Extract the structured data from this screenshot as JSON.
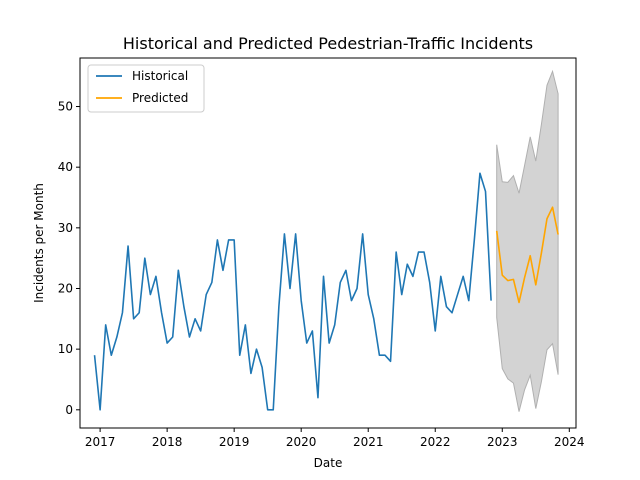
{
  "chart_data": {
    "type": "line",
    "title": "Historical and Predicted Pedestrian-Traffic Incidents",
    "xlabel": "Date",
    "ylabel": "Incidents per Month",
    "xlim": [
      2016.7,
      2024.1
    ],
    "ylim": [
      -3,
      58
    ],
    "xticks": [
      2017,
      2018,
      2019,
      2020,
      2021,
      2022,
      2023,
      2024
    ],
    "yticks": [
      0,
      10,
      20,
      30,
      40,
      50
    ],
    "grid": false,
    "legend_position": "top-left",
    "series": [
      {
        "name": "Historical",
        "color": "#1f77b4",
        "x": [
          2016.917,
          2017.0,
          2017.083,
          2017.167,
          2017.25,
          2017.333,
          2017.417,
          2017.5,
          2017.583,
          2017.667,
          2017.75,
          2017.833,
          2017.917,
          2018.0,
          2018.083,
          2018.167,
          2018.25,
          2018.333,
          2018.417,
          2018.5,
          2018.583,
          2018.667,
          2018.75,
          2018.833,
          2018.917,
          2019.0,
          2019.083,
          2019.167,
          2019.25,
          2019.333,
          2019.417,
          2019.5,
          2019.583,
          2019.667,
          2019.75,
          2019.833,
          2019.917,
          2020.0,
          2020.083,
          2020.167,
          2020.25,
          2020.333,
          2020.417,
          2020.5,
          2020.583,
          2020.667,
          2020.75,
          2020.833,
          2020.917,
          2021.0,
          2021.083,
          2021.167,
          2021.25,
          2021.333,
          2021.417,
          2021.5,
          2021.583,
          2021.667,
          2021.75,
          2021.833,
          2021.917,
          2022.0,
          2022.083,
          2022.167,
          2022.25,
          2022.333,
          2022.417,
          2022.5,
          2022.583,
          2022.667,
          2022.75,
          2022.833
        ],
        "values": [
          9,
          0,
          14,
          9,
          12,
          16,
          27,
          15,
          16,
          25,
          19,
          22,
          16,
          11,
          12,
          23,
          17,
          12,
          15,
          13,
          19,
          21,
          28,
          23,
          28,
          28,
          9,
          14,
          6,
          10,
          7,
          0,
          0,
          17,
          29,
          20,
          29,
          18,
          11,
          13,
          2,
          22,
          11,
          14,
          21,
          23,
          18,
          20,
          29,
          19,
          15,
          9,
          9,
          8,
          26,
          19,
          24,
          22,
          26,
          26,
          21,
          13,
          22,
          17,
          16,
          19,
          22,
          18,
          28,
          39,
          36,
          18
        ]
      },
      {
        "name": "Predicted",
        "color": "#ffa500",
        "x": [
          2022.917,
          2023.0,
          2023.083,
          2023.167,
          2023.25,
          2023.333,
          2023.417,
          2023.5,
          2023.583,
          2023.667,
          2023.75,
          2023.833
        ],
        "values": [
          29.5,
          22.2,
          21.3,
          21.5,
          17.7,
          21.8,
          25.4,
          20.6,
          25.8,
          31.5,
          33.4,
          28.9
        ]
      }
    ],
    "confidence_band": {
      "color": "#d3d3d3",
      "x": [
        2022.917,
        2023.0,
        2023.083,
        2023.167,
        2023.25,
        2023.333,
        2023.417,
        2023.5,
        2023.583,
        2023.667,
        2023.75,
        2023.833
      ],
      "lower": [
        15.2,
        6.8,
        5.1,
        4.4,
        -0.3,
        3.3,
        5.7,
        0.2,
        4.6,
        9.9,
        10.9,
        5.8
      ],
      "upper": [
        43.7,
        37.6,
        37.5,
        38.6,
        35.7,
        40.3,
        45.0,
        41.0,
        47.0,
        53.5,
        55.8,
        52.1
      ]
    }
  }
}
